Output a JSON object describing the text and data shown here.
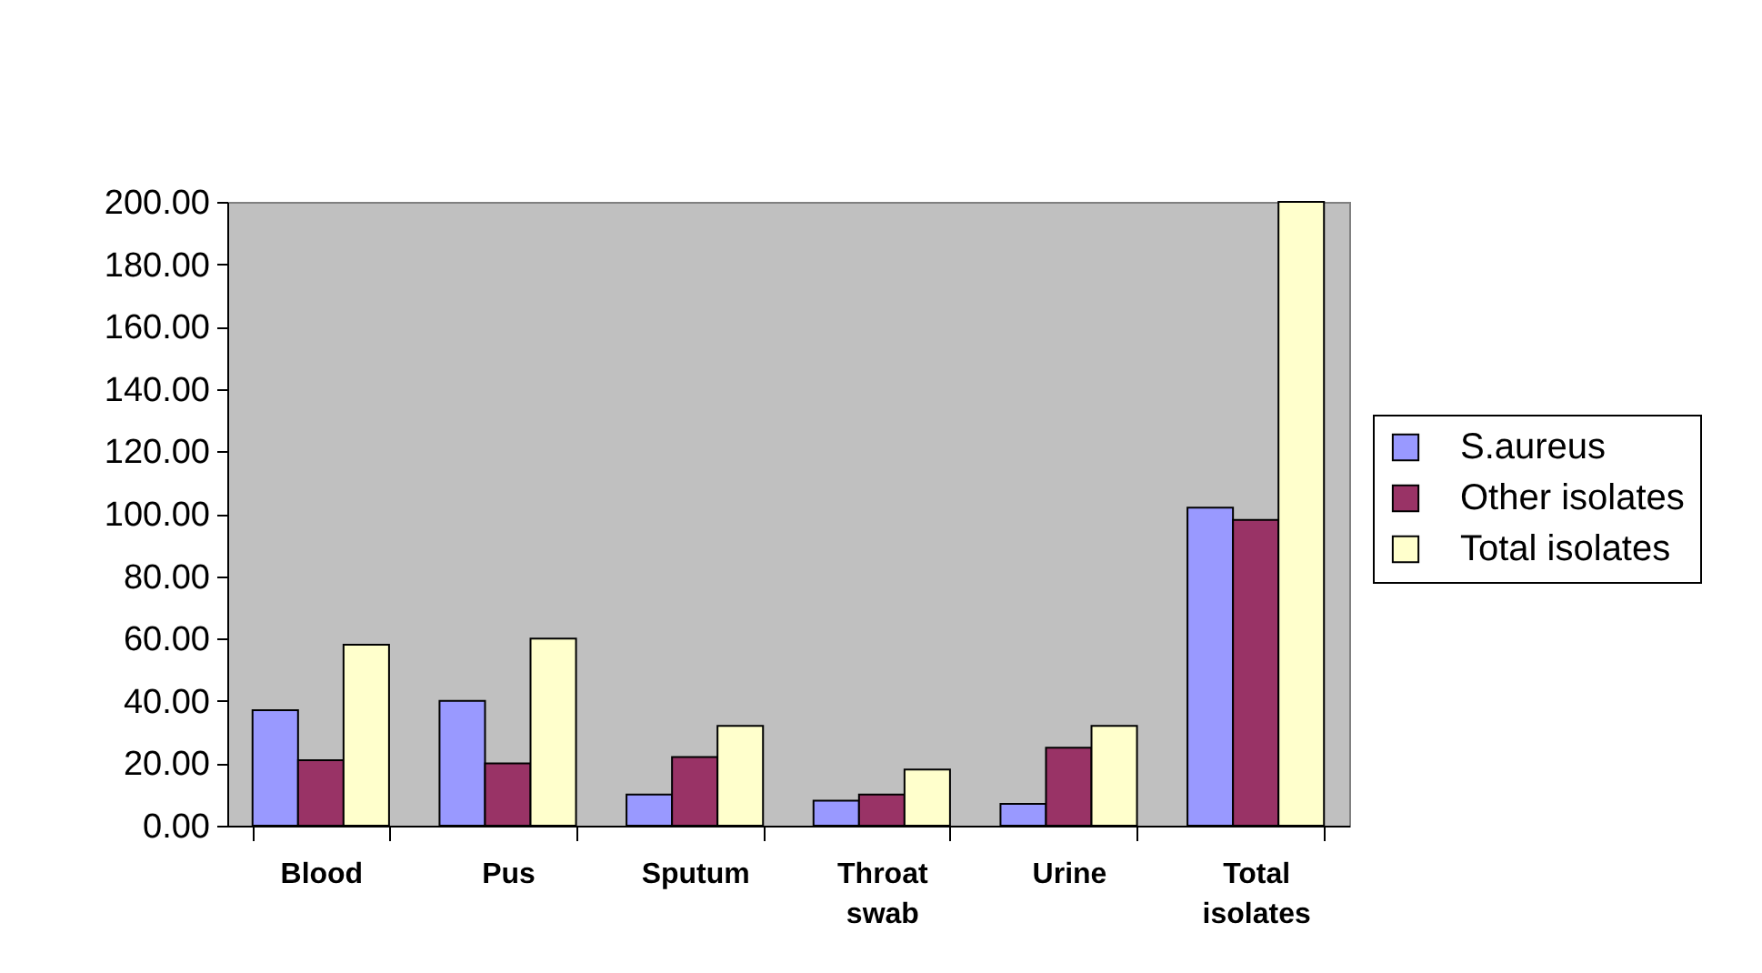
{
  "chart_data": {
    "type": "bar",
    "categories": [
      "Blood",
      "Pus",
      "Sputum",
      "Throat swab",
      "Urine",
      "Total isolates"
    ],
    "series": [
      {
        "name": "S.aureus",
        "color": "#9999ff",
        "values": [
          37,
          40,
          10,
          8,
          7,
          102
        ]
      },
      {
        "name": "Other isolates",
        "color": "#993366",
        "values": [
          21,
          20,
          22,
          10,
          25,
          98
        ]
      },
      {
        "name": "Total isolates",
        "color": "#ffffcc",
        "values": [
          58,
          60,
          32,
          18,
          32,
          200
        ]
      }
    ],
    "ylim": [
      0,
      200
    ],
    "yticks": [
      {
        "value": 0,
        "label": "0.00"
      },
      {
        "value": 20,
        "label": "20.00"
      },
      {
        "value": 40,
        "label": "40.00"
      },
      {
        "value": 60,
        "label": "60.00"
      },
      {
        "value": 80,
        "label": "80.00"
      },
      {
        "value": 100,
        "label": "100.00"
      },
      {
        "value": 120,
        "label": "120.00"
      },
      {
        "value": 140,
        "label": "140.00"
      },
      {
        "value": 160,
        "label": "160.00"
      },
      {
        "value": 180,
        "label": "180.00"
      },
      {
        "value": 200,
        "label": "200.00"
      }
    ],
    "grid": false,
    "legend": "right"
  }
}
